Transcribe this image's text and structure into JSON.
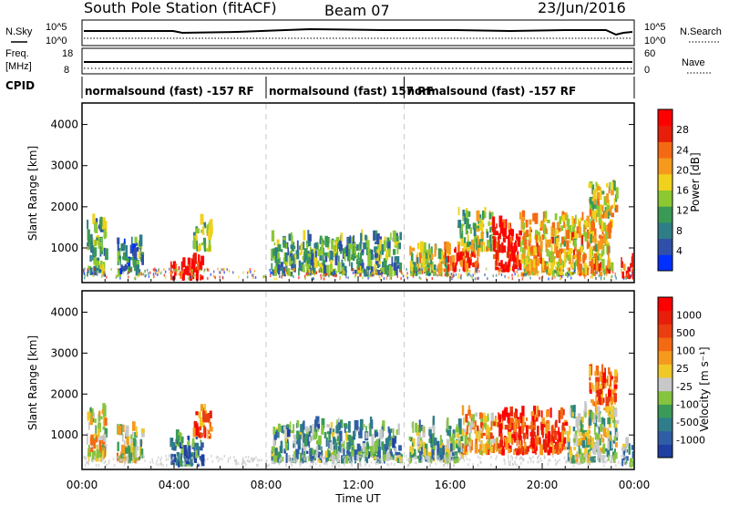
{
  "header": {
    "station": "South Pole Station (fitACF)",
    "beam": "Beam 07",
    "date": "23/Jun/2016"
  },
  "status_panels": {
    "nsky_label": "N.Sky",
    "nsearch_label": "N.Search",
    "noise_ticks_left": [
      "10^5",
      "10^0"
    ],
    "noise_ticks_right": [
      "10^5",
      "10^0"
    ],
    "freq_label_1": "Freq.",
    "freq_label_2": "[MHz]",
    "freq_ticks": [
      "18",
      "8"
    ],
    "nave_label": "Nave",
    "nave_ticks": [
      "60",
      "0"
    ],
    "cpid_label": "CPID",
    "cpid_segments": [
      {
        "start": 0,
        "end": 8,
        "text": "normalsound (fast) -157 RF"
      },
      {
        "start": 8,
        "end": 14,
        "text": "normalsound (fast) 157 RF"
      },
      {
        "start": 14,
        "end": 24,
        "text": "normalsound (fast) -157 RF"
      }
    ]
  },
  "chart_data": [
    {
      "type": "heatmap",
      "name": "power",
      "ylabel": "Slant Range [km]",
      "ylim": [
        180,
        4500
      ],
      "yticks": [
        1000,
        2000,
        3000,
        4000
      ],
      "xlim": [
        0,
        24
      ],
      "colorbar": {
        "label": "Power [dB]",
        "ticks": [
          "4",
          "8",
          "12",
          "16",
          "20",
          "24",
          "28"
        ],
        "colors": [
          "#0030ff",
          "#3050a8",
          "#2f7d86",
          "#3a9a55",
          "#8cc832",
          "#f0d21c",
          "#f59a1e",
          "#f46a14",
          "#e61e0a",
          "#ff0000"
        ]
      },
      "echo_regions": [
        {
          "t0": 0.2,
          "t1": 1.0,
          "r0": 300,
          "r1": 1600,
          "level": 0.35
        },
        {
          "t0": 1.5,
          "t1": 2.6,
          "r0": 300,
          "r1": 1100,
          "level": 0.3
        },
        {
          "t0": 3.8,
          "t1": 5.2,
          "r0": 200,
          "r1": 650,
          "level": 0.95
        },
        {
          "t0": 4.8,
          "t1": 5.6,
          "r0": 900,
          "r1": 1600,
          "level": 0.4
        },
        {
          "t0": 8.2,
          "t1": 13.8,
          "r0": 300,
          "r1": 1200,
          "level": 0.35
        },
        {
          "t0": 14.2,
          "t1": 16.0,
          "r0": 300,
          "r1": 1000,
          "level": 0.5
        },
        {
          "t0": 15.6,
          "t1": 17.2,
          "r0": 400,
          "r1": 900,
          "level": 0.8
        },
        {
          "t0": 16.3,
          "t1": 17.8,
          "r0": 900,
          "r1": 1800,
          "level": 0.45
        },
        {
          "t0": 17.8,
          "t1": 19.0,
          "r0": 400,
          "r1": 1500,
          "level": 0.9
        },
        {
          "t0": 19.0,
          "t1": 23.0,
          "r0": 300,
          "r1": 1700,
          "level": 0.6
        },
        {
          "t0": 22.0,
          "t1": 23.2,
          "r0": 1700,
          "r1": 2500,
          "level": 0.55
        },
        {
          "t0": 23.4,
          "t1": 24.0,
          "r0": 200,
          "r1": 700,
          "level": 0.9
        }
      ]
    },
    {
      "type": "heatmap",
      "name": "velocity",
      "ylabel": "Slant Range [km]",
      "xlabel": "Time UT",
      "ylim": [
        180,
        4500
      ],
      "yticks": [
        1000,
        2000,
        3000,
        4000
      ],
      "xlim": [
        0,
        24
      ],
      "xticks": [
        "00:00",
        "04:00",
        "08:00",
        "12:00",
        "16:00",
        "20:00",
        "00:00"
      ],
      "colorbar": {
        "label": "Velocity [m s⁻¹]",
        "ticks": [
          "1000",
          "500",
          "100",
          "25",
          "-25",
          "-100",
          "-500",
          "-1000"
        ],
        "colors": [
          "#1f3fa0",
          "#2f5ea6",
          "#2f7d8a",
          "#3c9a58",
          "#86c440",
          "#c8c8c8",
          "#f0c828",
          "#f59a1e",
          "#f46a14",
          "#ea3d10",
          "#e61e0a",
          "#ff0000"
        ]
      },
      "echo_regions": [
        {
          "t0": 0.2,
          "t1": 1.0,
          "r0": 300,
          "r1": 1600,
          "level": 0.5
        },
        {
          "t0": 1.5,
          "t1": 2.6,
          "r0": 300,
          "r1": 1100,
          "level": 0.45
        },
        {
          "t0": 3.8,
          "t1": 5.2,
          "r0": 200,
          "r1": 900,
          "level": 0.2
        },
        {
          "t0": 4.8,
          "t1": 5.6,
          "r0": 900,
          "r1": 1600,
          "level": 0.75
        },
        {
          "t0": 8.2,
          "t1": 13.8,
          "r0": 300,
          "r1": 1200,
          "level": 0.3
        },
        {
          "t0": 14.2,
          "t1": 16.5,
          "r0": 300,
          "r1": 1200,
          "level": 0.35
        },
        {
          "t0": 16.5,
          "t1": 18.0,
          "r0": 500,
          "r1": 1500,
          "level": 0.6
        },
        {
          "t0": 18.0,
          "t1": 21.0,
          "r0": 500,
          "r1": 1500,
          "level": 0.8
        },
        {
          "t0": 21.0,
          "t1": 23.2,
          "r0": 300,
          "r1": 1600,
          "level": 0.4
        },
        {
          "t0": 22.0,
          "t1": 23.2,
          "r0": 1700,
          "r1": 2500,
          "level": 0.75
        },
        {
          "t0": 23.4,
          "t1": 24.0,
          "r0": 200,
          "r1": 700,
          "level": 0.3
        }
      ]
    }
  ]
}
